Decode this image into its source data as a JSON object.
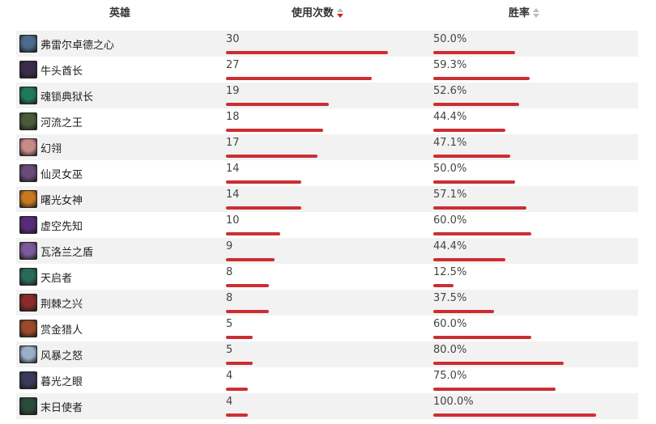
{
  "header": {
    "hero_label": "英雄",
    "uses_label": "使用次数",
    "winrate_label": "胜率"
  },
  "sort": {
    "column": "uses",
    "direction": "desc"
  },
  "rows": [
    {
      "hero": "弗雷尔卓德之心",
      "uses": "30",
      "winrate": "50.0%",
      "avatar_color": "#4a6b8a"
    },
    {
      "hero": "牛头酋长",
      "uses": "27",
      "winrate": "59.3%",
      "avatar_color": "#3b2d4a"
    },
    {
      "hero": "魂锁典狱长",
      "uses": "19",
      "winrate": "52.6%",
      "avatar_color": "#1f7a5a"
    },
    {
      "hero": "河流之王",
      "uses": "18",
      "winrate": "44.4%",
      "avatar_color": "#4a5a3a"
    },
    {
      "hero": "幻翎",
      "uses": "17",
      "winrate": "47.1%",
      "avatar_color": "#c98a8a"
    },
    {
      "hero": "仙灵女巫",
      "uses": "14",
      "winrate": "50.0%",
      "avatar_color": "#6a4a7a"
    },
    {
      "hero": "曙光女神",
      "uses": "14",
      "winrate": "57.1%",
      "avatar_color": "#c8781e"
    },
    {
      "hero": "虚空先知",
      "uses": "10",
      "winrate": "60.0%",
      "avatar_color": "#5a2a7a"
    },
    {
      "hero": "瓦洛兰之盾",
      "uses": "9",
      "winrate": "44.4%",
      "avatar_color": "#7a5a9a"
    },
    {
      "hero": "天启者",
      "uses": "8",
      "winrate": "12.5%",
      "avatar_color": "#2a6a5a"
    },
    {
      "hero": "荆棘之兴",
      "uses": "8",
      "winrate": "37.5%",
      "avatar_color": "#8a2a2a"
    },
    {
      "hero": "赏金猎人",
      "uses": "5",
      "winrate": "60.0%",
      "avatar_color": "#9a4a2a"
    },
    {
      "hero": "风暴之怒",
      "uses": "5",
      "winrate": "80.0%",
      "avatar_color": "#9ab0c8"
    },
    {
      "hero": "暮光之眼",
      "uses": "4",
      "winrate": "75.0%",
      "avatar_color": "#3a3a5a"
    },
    {
      "hero": "末日使者",
      "uses": "4",
      "winrate": "100.0%",
      "avatar_color": "#2a4a3a"
    }
  ],
  "colors": {
    "bar": "#cc2e33",
    "stripe": "#f2f2f2"
  }
}
